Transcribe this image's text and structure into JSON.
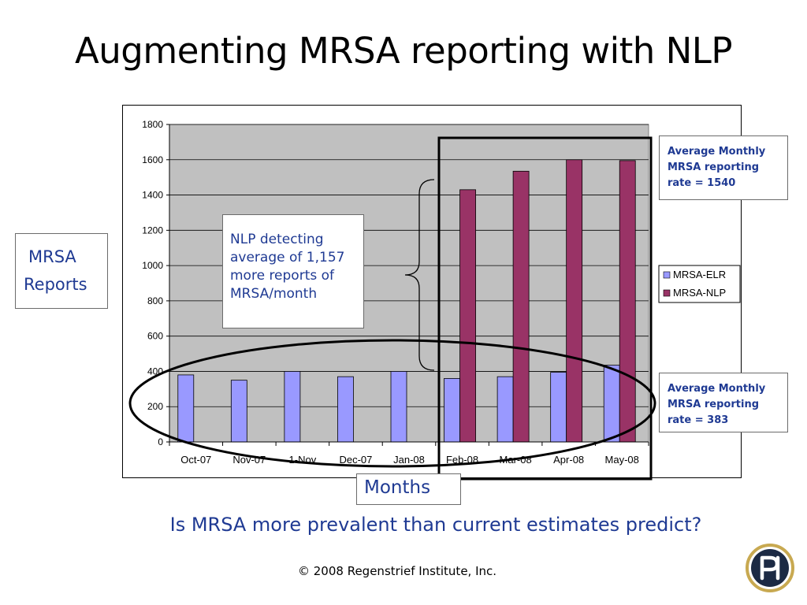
{
  "slide": {
    "title": "Augmenting MRSA reporting with NLP",
    "question": "Is MRSA more prevalent than current estimates predict?",
    "copyright": "© 2008 Regenstrief Institute, Inc."
  },
  "annotations": {
    "ylabel_line1": "MRSA",
    "ylabel_line2": "Reports",
    "xlabel": "Months",
    "nlp_note": "NLP detecting average of 1,157 more reports of MRSA/month",
    "avg_nlp": "Average Monthly MRSA reporting rate = 1540",
    "avg_elr": "Average Monthly MRSA reporting rate = 383"
  },
  "colors": {
    "elr": "#9999ff",
    "nlp": "#993366",
    "plot_bg": "#c0c0c0",
    "text_blue": "#1f3a93"
  },
  "chart_data": {
    "type": "bar",
    "categories": [
      "Oct-07",
      "Nov-07",
      "1-Nov",
      "Dec-07",
      "Jan-08",
      "Feb-08",
      "Mar-08",
      "Apr-08",
      "May-08"
    ],
    "series": [
      {
        "name": "MRSA-ELR",
        "values": [
          380,
          350,
          400,
          370,
          400,
          360,
          370,
          395,
          435
        ]
      },
      {
        "name": "MRSA-NLP",
        "values": [
          null,
          null,
          null,
          null,
          null,
          1430,
          1535,
          1600,
          1595
        ]
      }
    ],
    "ylim": [
      0,
      1800
    ],
    "yticks": [
      "0",
      "200",
      "400",
      "600",
      "800",
      "1000",
      "1200",
      "1400",
      "1600",
      "1800"
    ],
    "grid": true,
    "legend": "right"
  }
}
